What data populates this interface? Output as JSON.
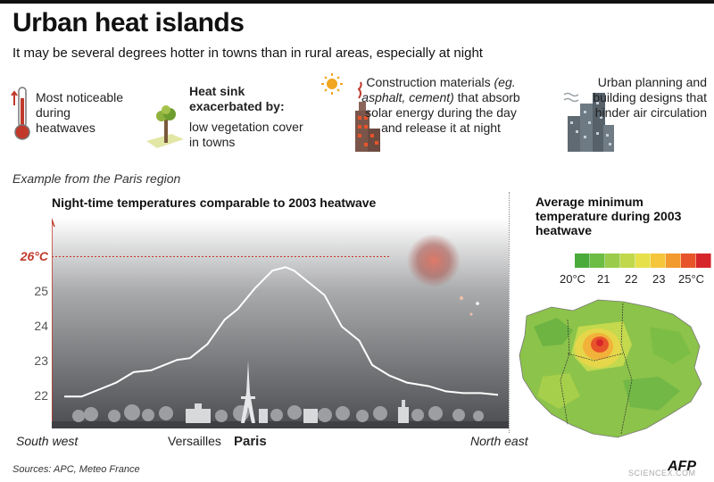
{
  "header": {
    "title": "Urban heat islands",
    "subtitle": "It may be several degrees hotter in towns than in rural areas, especially at night"
  },
  "facts": {
    "f1": "Most noticeable during heatwaves",
    "f2_heading": "Heat sink exacerbated by:",
    "f2_text": "low vegetation cover in towns",
    "f3_pre": "Construction materials ",
    "f3_italic": "(eg. asphalt, cement)",
    "f3_post": " that absorb solar energy during the day and release it at night",
    "f4": "Urban planning and building designs that hinder air circulation"
  },
  "region_note": "Example from the Paris region",
  "chart_data": {
    "type": "line",
    "title": "Night-time temperatures comparable to 2003 heatwave",
    "y_ticks": [
      "22",
      "23",
      "24",
      "25",
      "26°C"
    ],
    "ylim": [
      21.6,
      26.6
    ],
    "reference_line": 26,
    "x_labels": {
      "left": "South west",
      "versailles": "Versailles",
      "paris": "Paris",
      "right": "North east"
    },
    "x": [
      0,
      4,
      12,
      16,
      20,
      26,
      29,
      33,
      37,
      40,
      44,
      48,
      51,
      53,
      57,
      60,
      64,
      68,
      71,
      75,
      79,
      84,
      88,
      92,
      96,
      100
    ],
    "y": [
      22.0,
      22.0,
      22.4,
      22.7,
      22.75,
      23.05,
      23.1,
      23.5,
      24.2,
      24.5,
      25.1,
      25.6,
      25.7,
      25.6,
      25.2,
      24.9,
      24.0,
      23.6,
      22.9,
      22.6,
      22.4,
      22.3,
      22.15,
      22.1,
      22.1,
      22.05
    ],
    "line_color": "#ffffff",
    "grid": false
  },
  "map": {
    "title": "Average minimum temperature during 2003 heatwave",
    "scale_colors": [
      "#4bab3a",
      "#6dbd45",
      "#9acb4a",
      "#c2d84c",
      "#e6e04a",
      "#f5c53c",
      "#f29a2e",
      "#e8542a",
      "#d7262b"
    ],
    "scale_labels": [
      "20°C",
      "21",
      "22",
      "23",
      "25°C"
    ]
  },
  "footer": {
    "sources": "Sources: APC, Meteo France",
    "credit": "SCIENCEX.COM",
    "logo": "AFP"
  }
}
